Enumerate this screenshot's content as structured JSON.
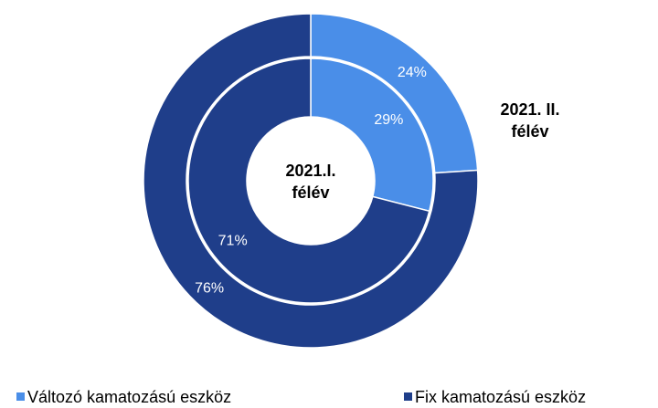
{
  "chart_data": {
    "type": "donut",
    "categories": [
      "Változó kamatozású eszköz",
      "Fix kamatozású eszköz"
    ],
    "colors": [
      "#4a8ee8",
      "#1f3e8a"
    ],
    "rings": [
      {
        "name": "2021.I. félév",
        "values": [
          29,
          71
        ],
        "value_labels": [
          "29%",
          "71%"
        ]
      },
      {
        "name": "2021. II. félév",
        "values": [
          24,
          76
        ],
        "value_labels": [
          "24%",
          "76%"
        ]
      }
    ]
  }
}
